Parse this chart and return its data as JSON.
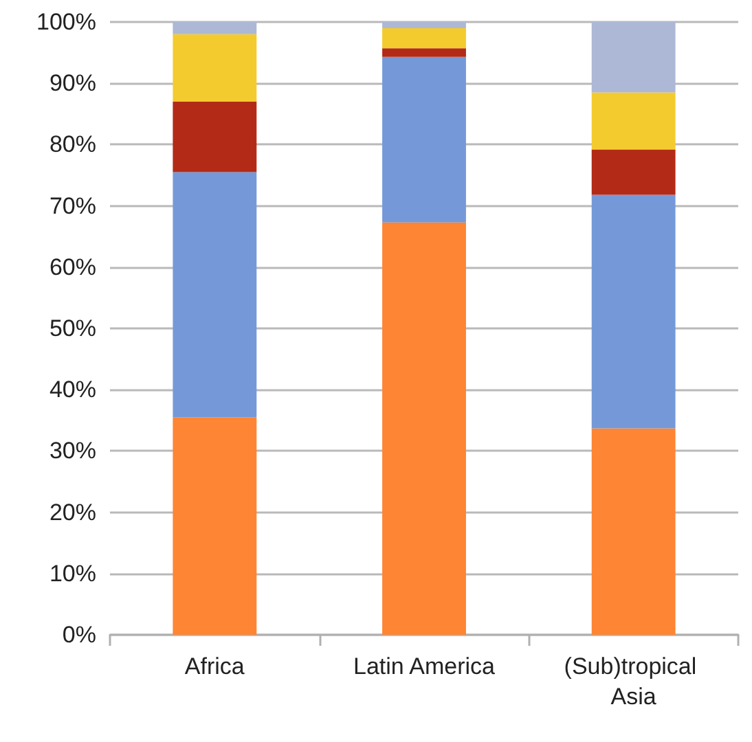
{
  "chart_data": {
    "type": "bar",
    "stacked": true,
    "categories": [
      "Africa",
      "Latin America",
      "(Sub)tropical Asia"
    ],
    "series": [
      {
        "color": "#fe8533",
        "values": [
          35.5,
          67.3,
          33.7
        ]
      },
      {
        "color": "#7599d8",
        "values": [
          40,
          27,
          38.1
        ]
      },
      {
        "color": "#b32b16",
        "values": [
          11.5,
          1.4,
          7.4
        ]
      },
      {
        "color": "#f4cb2e",
        "values": [
          11,
          3.3,
          9.3
        ]
      },
      {
        "color": "#adb8d6",
        "values": [
          2,
          1,
          11.5
        ]
      }
    ],
    "ylim": [
      0,
      100
    ],
    "yticks": [
      {
        "value": 0,
        "label": "0%"
      },
      {
        "value": 10,
        "label": "10%"
      },
      {
        "value": 20,
        "label": "20%"
      },
      {
        "value": 30,
        "label": "30%"
      },
      {
        "value": 40,
        "label": "40%"
      },
      {
        "value": 50,
        "label": "50%"
      },
      {
        "value": 60,
        "label": "60%"
      },
      {
        "value": 70,
        "label": "70%"
      },
      {
        "value": 80,
        "label": "80%"
      },
      {
        "value": 90,
        "label": "90%"
      },
      {
        "value": 100,
        "label": "100%"
      }
    ],
    "grid": "y"
  }
}
